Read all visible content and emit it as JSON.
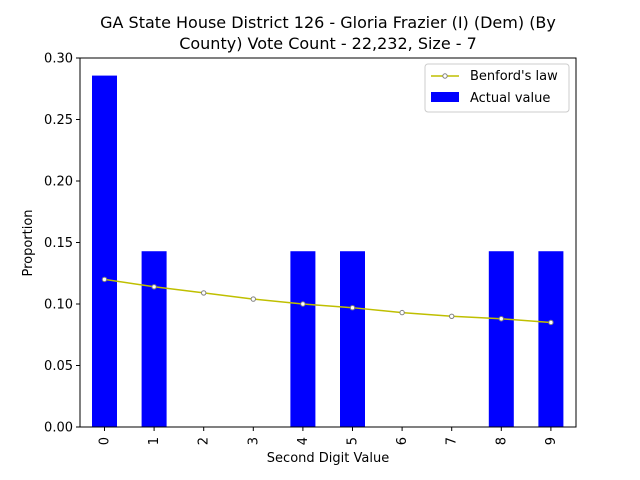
{
  "chart_data": {
    "type": "bar",
    "title_lines": [
      "GA State House District 126 - Gloria Frazier (I) (Dem) (By",
      "County) Vote Count - 22,232, Size - 7"
    ],
    "xlabel": "Second Digit Value",
    "ylabel": "Proportion",
    "categories": [
      "0",
      "1",
      "2",
      "3",
      "4",
      "5",
      "6",
      "7",
      "8",
      "9"
    ],
    "ylim": [
      0,
      0.3
    ],
    "yticks": [
      "0.00",
      "0.05",
      "0.10",
      "0.15",
      "0.20",
      "0.25",
      "0.30"
    ],
    "ytick_values": [
      0,
      0.05,
      0.1,
      0.15,
      0.2,
      0.25,
      0.3
    ],
    "legend_position": "top-right",
    "series": [
      {
        "name": "Benford's law",
        "kind": "line",
        "color": "#bfbf00",
        "marker_color": "#808080",
        "values": [
          0.12,
          0.114,
          0.109,
          0.104,
          0.1,
          0.097,
          0.093,
          0.09,
          0.088,
          0.085
        ]
      },
      {
        "name": "Actual value",
        "kind": "bar",
        "color": "#0000ff",
        "values": [
          0.2857,
          0.1429,
          0,
          0,
          0.1429,
          0.1429,
          0,
          0,
          0.1429,
          0.1429
        ]
      }
    ]
  }
}
